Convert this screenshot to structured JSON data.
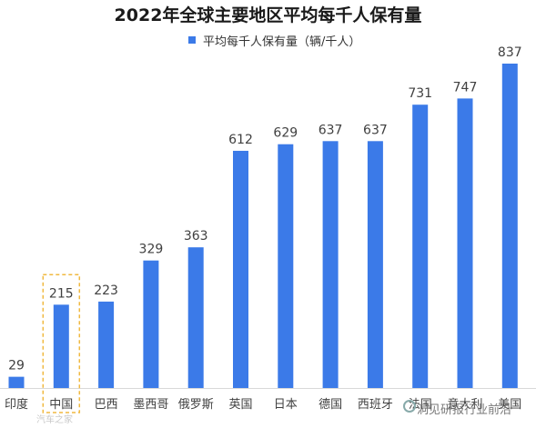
{
  "chart_data": {
    "type": "bar",
    "title": "2022年全球主要地区平均每千人保有量",
    "categories": [
      "印度",
      "中国",
      "巴西",
      "墨西哥",
      "俄罗斯",
      "英国",
      "日本",
      "德国",
      "西班牙",
      "法国",
      "意大利",
      "美国"
    ],
    "series": [
      {
        "name": "平均每千人保有量（辆/千人）",
        "values": [
          29,
          215,
          223,
          329,
          363,
          612,
          629,
          637,
          637,
          731,
          747,
          837
        ]
      }
    ],
    "highlight_category": "中国",
    "ylim": [
      0,
      870
    ],
    "grid": false,
    "legend_position": "top-center",
    "colors": {
      "bar": "#3b7ae8",
      "highlight_box": "#f0b940"
    }
  },
  "watermarks": {
    "left": "汽车之家",
    "right": "洞见研报行业前沿"
  }
}
